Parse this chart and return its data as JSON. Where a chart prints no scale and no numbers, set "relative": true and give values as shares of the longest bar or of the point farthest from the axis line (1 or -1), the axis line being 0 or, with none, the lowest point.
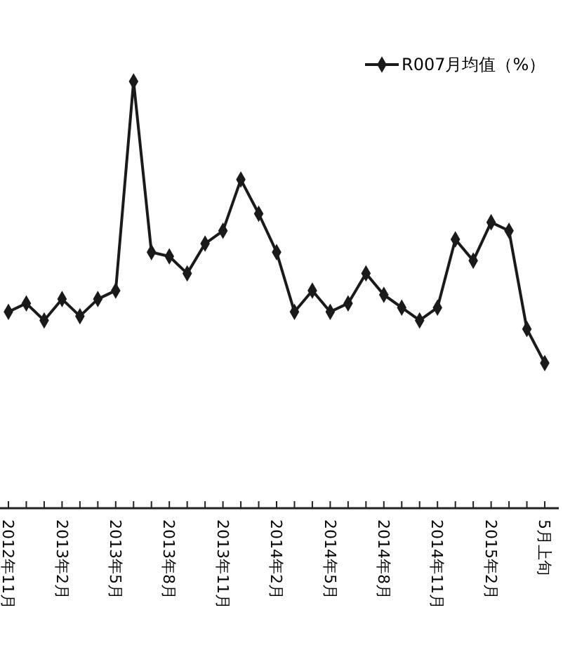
{
  "chart_data": {
    "type": "line",
    "relative": true,
    "marker": "diamond",
    "legend": "top right",
    "grid": false,
    "categories": [
      "2012年11月",
      null,
      null,
      "2013年2月",
      null,
      null,
      "2013年5月",
      null,
      null,
      "2013年8月",
      null,
      null,
      "2013年11月",
      null,
      null,
      "2014年2月",
      null,
      null,
      "2014年5月",
      null,
      null,
      "2014年8月",
      null,
      null,
      "2014年11月",
      null,
      null,
      "2015年2月",
      null,
      null,
      "5月上旬"
    ],
    "series": [
      {
        "name": "R007月均值（%）",
        "color": "#1a1a1a",
        "values": [
          0.46,
          0.48,
          0.44,
          0.49,
          0.45,
          0.49,
          0.51,
          1,
          0.6,
          0.59,
          0.55,
          0.62,
          0.65,
          0.77,
          0.69,
          0.6,
          0.46,
          0.51,
          0.46,
          0.48,
          0.55,
          0.5,
          0.47,
          0.44,
          0.47,
          0.63,
          0.58,
          0.67,
          0.65,
          0.42,
          0.34
        ]
      }
    ]
  }
}
